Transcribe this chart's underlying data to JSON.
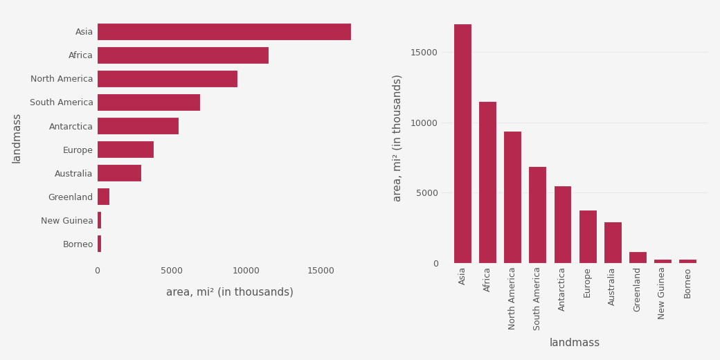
{
  "categories": [
    "Asia",
    "Africa",
    "North America",
    "South America",
    "Antarctica",
    "Europe",
    "Australia",
    "Greenland",
    "New Guinea",
    "Borneo"
  ],
  "values": [
    17000,
    11500,
    9400,
    6900,
    5500,
    3800,
    2968,
    840,
    306,
    290
  ],
  "bar_color": "#b5294e",
  "background_color": "#f5f5f5",
  "left_xlabel": "area, mi² (in thousands)",
  "left_ylabel": "landmass",
  "right_xlabel": "landmass",
  "right_ylabel": "area, mi² (in thousands)",
  "axis_label_fontsize": 11,
  "tick_fontsize": 9,
  "label_color": "#555555",
  "grid_color": "#e8e8e8"
}
